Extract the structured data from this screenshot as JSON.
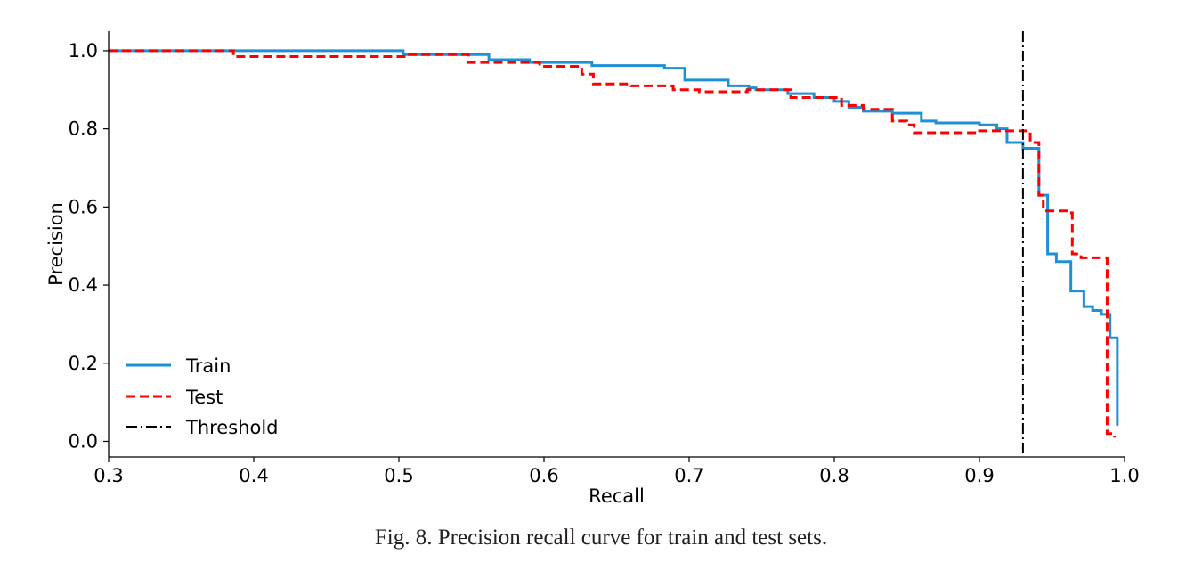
{
  "caption": "Fig. 8.  Precision recall curve for train and test sets.",
  "chart_data": {
    "type": "line",
    "title": "",
    "xlabel": "Recall",
    "ylabel": "Precision",
    "xlim": [
      0.3,
      1.0
    ],
    "ylim": [
      -0.04,
      1.05
    ],
    "xticks": [
      0.3,
      0.4,
      0.5,
      0.6,
      0.7,
      0.8,
      0.9,
      1.0
    ],
    "xtick_labels": [
      "0.3",
      "0.4",
      "0.5",
      "0.6",
      "0.7",
      "0.8",
      "0.9",
      "1.0"
    ],
    "yticks": [
      0.0,
      0.2,
      0.4,
      0.6,
      0.8,
      1.0
    ],
    "ytick_labels": [
      "0.0",
      "0.2",
      "0.4",
      "0.6",
      "0.8",
      "1.0"
    ],
    "grid": false,
    "legend_position": "lower-left",
    "series": [
      {
        "name": "Train",
        "color": "#1f8fd6",
        "style": "solid",
        "drawstyle": "steps",
        "recall": [
          0.3,
          0.503,
          0.562,
          0.59,
          0.633,
          0.683,
          0.697,
          0.727,
          0.741,
          0.746,
          0.768,
          0.786,
          0.8,
          0.81,
          0.82,
          0.84,
          0.86,
          0.87,
          0.9,
          0.912,
          0.919,
          0.93,
          0.941,
          0.947,
          0.953,
          0.963,
          0.972,
          0.978,
          0.984,
          0.99,
          0.995
        ],
        "precision": [
          1.0,
          0.99,
          0.977,
          0.97,
          0.962,
          0.955,
          0.925,
          0.91,
          0.905,
          0.9,
          0.89,
          0.88,
          0.87,
          0.855,
          0.845,
          0.84,
          0.82,
          0.815,
          0.81,
          0.8,
          0.765,
          0.75,
          0.63,
          0.48,
          0.46,
          0.385,
          0.345,
          0.335,
          0.325,
          0.265,
          0.04
        ]
      },
      {
        "name": "Test",
        "color": "#ff0000",
        "style": "dashed",
        "drawstyle": "steps",
        "recall": [
          0.3,
          0.386,
          0.505,
          0.548,
          0.57,
          0.597,
          0.626,
          0.634,
          0.66,
          0.689,
          0.707,
          0.74,
          0.77,
          0.805,
          0.82,
          0.84,
          0.85,
          0.855,
          0.87,
          0.9,
          0.935,
          0.941,
          0.944,
          0.96,
          0.964,
          0.97,
          0.988,
          0.993
        ],
        "precision": [
          1.0,
          0.985,
          0.99,
          0.97,
          0.97,
          0.96,
          0.94,
          0.915,
          0.91,
          0.9,
          0.895,
          0.9,
          0.88,
          0.86,
          0.85,
          0.82,
          0.81,
          0.79,
          0.79,
          0.795,
          0.765,
          0.63,
          0.59,
          0.585,
          0.48,
          0.47,
          0.02,
          0.01
        ]
      }
    ],
    "threshold": {
      "name": "Threshold",
      "recall": 0.93,
      "color": "#000000",
      "style": "dashdot"
    }
  }
}
